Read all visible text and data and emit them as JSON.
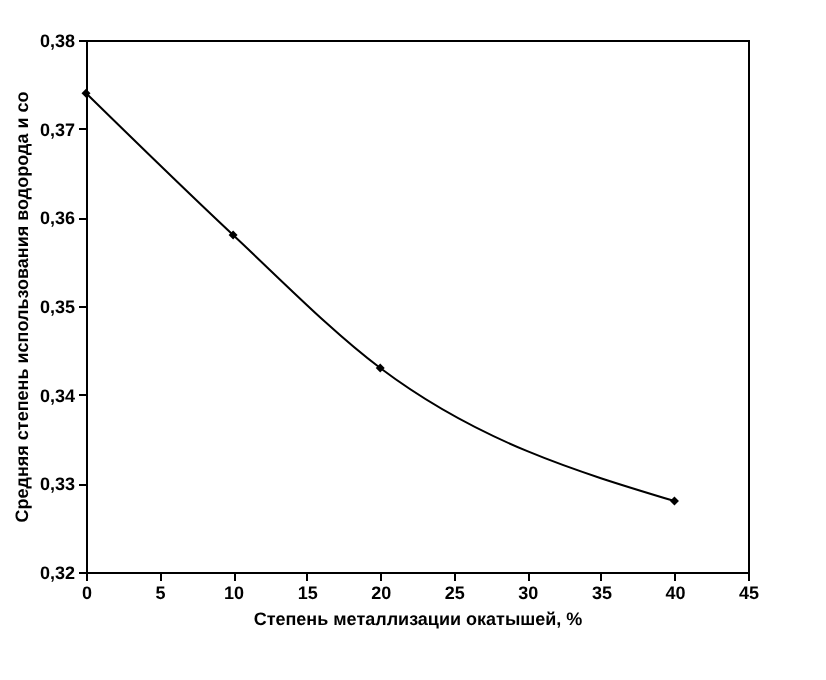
{
  "chart_data": {
    "type": "line",
    "xlabel": "Степень металлизации окатышей, %",
    "ylabel": "Средняя степень использования водорода и со",
    "x": [
      0,
      10,
      20,
      40
    ],
    "series": [
      {
        "color": "#000000",
        "values": [
          0.374,
          0.358,
          0.343,
          0.328
        ]
      }
    ],
    "xlim": [
      0,
      45
    ],
    "xticks": [
      0,
      5,
      10,
      15,
      20,
      25,
      30,
      35,
      40,
      45
    ],
    "ylim": [
      0.32,
      0.38
    ],
    "yticks": [
      {
        "value": 0.32,
        "label": "0,32"
      },
      {
        "value": 0.33,
        "label": "0,33"
      },
      {
        "value": 0.34,
        "label": "0,34"
      },
      {
        "value": 0.35,
        "label": "0,35"
      },
      {
        "value": 0.36,
        "label": "0,36"
      },
      {
        "value": 0.37,
        "label": "0,37"
      },
      {
        "value": 0.38,
        "label": "0,38"
      }
    ],
    "grid": false,
    "marker": "diamond",
    "line_style": "solid"
  }
}
